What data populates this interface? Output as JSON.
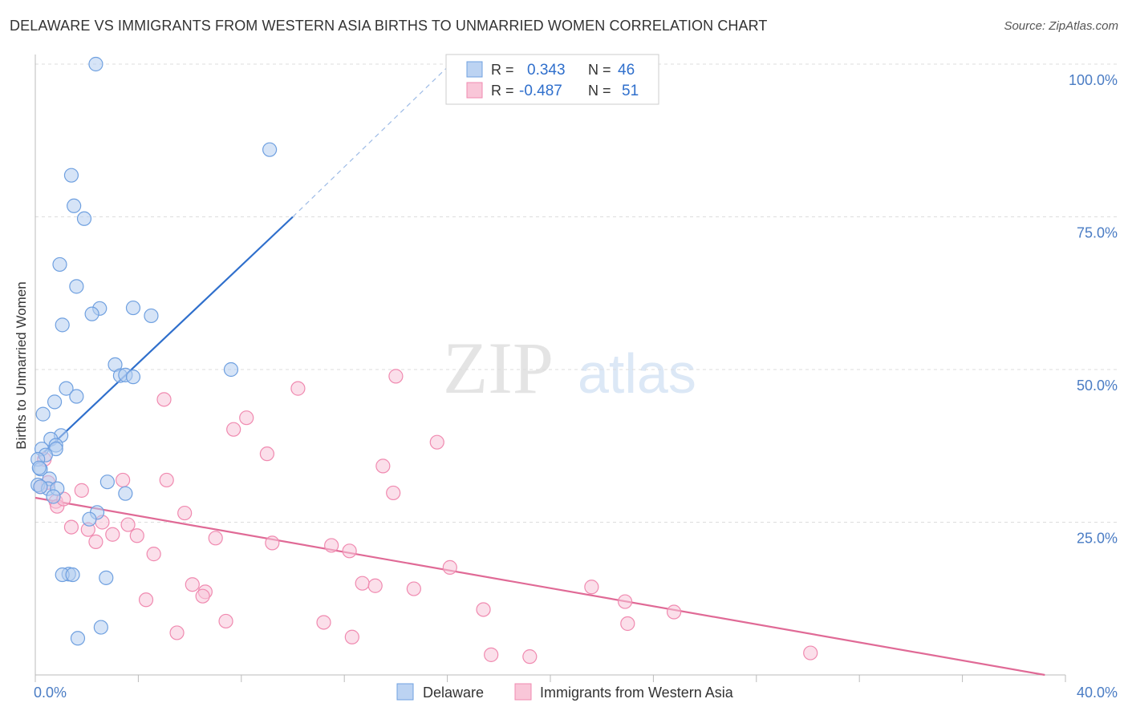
{
  "title": "DELAWARE VS IMMIGRANTS FROM WESTERN ASIA BIRTHS TO UNMARRIED WOMEN CORRELATION CHART",
  "source": "Source: ZipAtlas.com",
  "watermark": {
    "zip": "ZIP",
    "atlas": "atlas"
  },
  "legend_box": {
    "rows": [
      {
        "r_label": "R =",
        "r_value": "0.343",
        "n_label": "N =",
        "n_value": "46"
      },
      {
        "r_label": "R =",
        "r_value": "-0.487",
        "n_label": "N =",
        "n_value": "51"
      }
    ]
  },
  "colors": {
    "delaware": "#6fa0e0",
    "delaware_line": "#2f6fcc",
    "immigrants": "#f08ab0",
    "immigrants_line": "#e06a96",
    "axis_text": "#4a7cc4",
    "grid": "#dddddd"
  },
  "chart_data": {
    "type": "scatter",
    "title": "DELAWARE VS IMMIGRANTS FROM WESTERN ASIA BIRTHS TO UNMARRIED WOMEN CORRELATION CHART",
    "xlabel": "",
    "ylabel": "Births to Unmarried Women",
    "xlim": [
      0,
      40
    ],
    "ylim": [
      0,
      100
    ],
    "x_tick_labels": [
      "0.0%",
      "40.0%"
    ],
    "y_tick_labels": [
      "25.0%",
      "50.0%",
      "75.0%",
      "100.0%"
    ],
    "y_ticks": [
      25,
      50,
      75,
      100
    ],
    "grid": true,
    "legend_position": "bottom",
    "series": [
      {
        "name": "Delaware",
        "r": 0.343,
        "n": 46,
        "trend": {
          "x_start": 0.1,
          "y_start": 35.5,
          "x_solid_end": 10.0,
          "y_solid_end": 75.0,
          "x_dash_end": 16.0,
          "y_dash_end": 99.5
        },
        "points": [
          [
            2.35,
            100.0
          ],
          [
            9.1,
            86.0
          ],
          [
            1.4,
            81.8
          ],
          [
            1.5,
            76.8
          ],
          [
            1.9,
            74.7
          ],
          [
            0.95,
            67.2
          ],
          [
            1.6,
            63.6
          ],
          [
            2.5,
            60.0
          ],
          [
            3.8,
            60.1
          ],
          [
            2.2,
            59.1
          ],
          [
            4.5,
            58.8
          ],
          [
            1.05,
            57.3
          ],
          [
            3.1,
            50.8
          ],
          [
            7.6,
            50.0
          ],
          [
            3.3,
            49.0
          ],
          [
            3.5,
            49.1
          ],
          [
            3.8,
            48.8
          ],
          [
            1.2,
            46.9
          ],
          [
            1.6,
            45.6
          ],
          [
            0.75,
            44.7
          ],
          [
            0.3,
            42.7
          ],
          [
            1.0,
            39.2
          ],
          [
            0.6,
            38.6
          ],
          [
            0.8,
            37.6
          ],
          [
            0.25,
            37.0
          ],
          [
            0.8,
            37.0
          ],
          [
            0.4,
            36.0
          ],
          [
            0.1,
            35.3
          ],
          [
            0.2,
            33.7
          ],
          [
            0.55,
            32.1
          ],
          [
            2.8,
            31.6
          ],
          [
            0.1,
            31.1
          ],
          [
            0.5,
            30.5
          ],
          [
            0.85,
            30.5
          ],
          [
            3.5,
            29.7
          ],
          [
            0.7,
            29.2
          ],
          [
            2.4,
            26.6
          ],
          [
            2.1,
            25.5
          ],
          [
            1.3,
            16.5
          ],
          [
            1.05,
            16.4
          ],
          [
            1.45,
            16.4
          ],
          [
            2.75,
            15.9
          ],
          [
            2.55,
            7.8
          ],
          [
            1.65,
            6.0
          ],
          [
            0.15,
            33.9
          ],
          [
            0.2,
            30.8
          ]
        ]
      },
      {
        "name": "Immigrants from Western Asia",
        "r": -0.487,
        "n": 51,
        "trend": {
          "x_start": 0.0,
          "y_start": 29.0,
          "x_end": 39.2,
          "y_end": 0.0
        },
        "points": [
          [
            0.35,
            35.3
          ],
          [
            0.5,
            31.5
          ],
          [
            0.2,
            30.8
          ],
          [
            0.8,
            28.4
          ],
          [
            0.85,
            27.6
          ],
          [
            1.1,
            28.8
          ],
          [
            1.8,
            30.2
          ],
          [
            3.4,
            31.9
          ],
          [
            5.1,
            31.9
          ],
          [
            5.0,
            45.1
          ],
          [
            8.2,
            42.1
          ],
          [
            7.7,
            40.2
          ],
          [
            10.2,
            46.9
          ],
          [
            14.0,
            48.9
          ],
          [
            9.0,
            36.2
          ],
          [
            15.6,
            38.1
          ],
          [
            13.5,
            34.2
          ],
          [
            13.9,
            29.8
          ],
          [
            5.8,
            26.5
          ],
          [
            2.6,
            25.0
          ],
          [
            3.6,
            24.6
          ],
          [
            1.4,
            24.2
          ],
          [
            2.05,
            23.8
          ],
          [
            3.0,
            23.0
          ],
          [
            3.95,
            22.8
          ],
          [
            7.0,
            22.4
          ],
          [
            2.35,
            21.8
          ],
          [
            9.2,
            21.6
          ],
          [
            11.5,
            21.2
          ],
          [
            12.2,
            20.3
          ],
          [
            4.6,
            19.8
          ],
          [
            16.1,
            17.6
          ],
          [
            6.1,
            14.8
          ],
          [
            12.7,
            15.0
          ],
          [
            13.2,
            14.6
          ],
          [
            14.7,
            14.1
          ],
          [
            6.6,
            13.6
          ],
          [
            6.5,
            12.9
          ],
          [
            4.3,
            12.3
          ],
          [
            21.6,
            14.4
          ],
          [
            22.9,
            12.0
          ],
          [
            17.4,
            10.7
          ],
          [
            24.8,
            10.3
          ],
          [
            7.4,
            8.8
          ],
          [
            11.2,
            8.6
          ],
          [
            23.0,
            8.4
          ],
          [
            5.5,
            6.9
          ],
          [
            12.3,
            6.2
          ],
          [
            17.7,
            3.3
          ],
          [
            19.2,
            3.0
          ],
          [
            30.1,
            3.6
          ]
        ]
      }
    ]
  }
}
